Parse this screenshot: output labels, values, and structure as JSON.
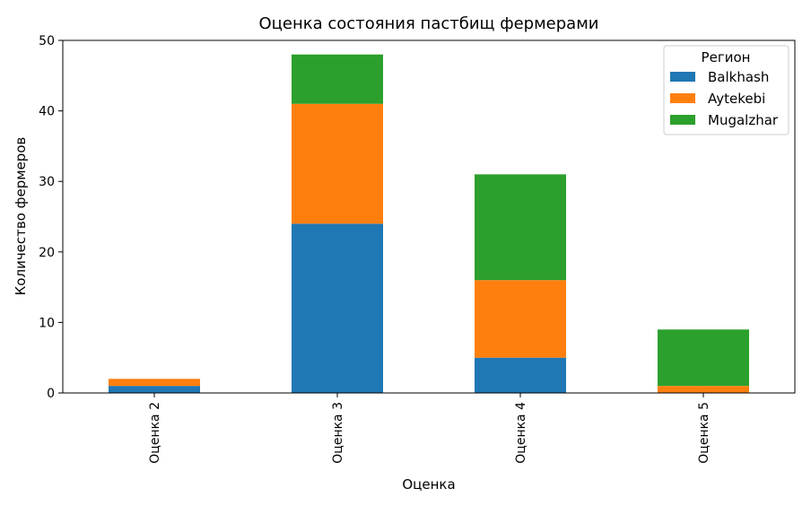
{
  "chart_data": {
    "type": "bar",
    "stacked": true,
    "title": "Оценка состояния пастбищ фермерами",
    "xlabel": "Оценка",
    "ylabel": "Количество фермеров",
    "categories": [
      "Оценка 2",
      "Оценка 3",
      "Оценка 4",
      "Оценка 5"
    ],
    "series": [
      {
        "name": "Balkhash",
        "color": "#1f77b4",
        "values": [
          1,
          24,
          5,
          0
        ]
      },
      {
        "name": "Aytekebi",
        "color": "#ff7f0e",
        "values": [
          1,
          17,
          11,
          1
        ]
      },
      {
        "name": "Mugalzhar",
        "color": "#2ca02c",
        "values": [
          0,
          7,
          15,
          8
        ]
      }
    ],
    "ylim": [
      0,
      50
    ],
    "yticks": [
      0,
      10,
      20,
      30,
      40,
      50
    ],
    "legend": {
      "title": "Регион",
      "position": "top-right"
    },
    "grid": false
  }
}
